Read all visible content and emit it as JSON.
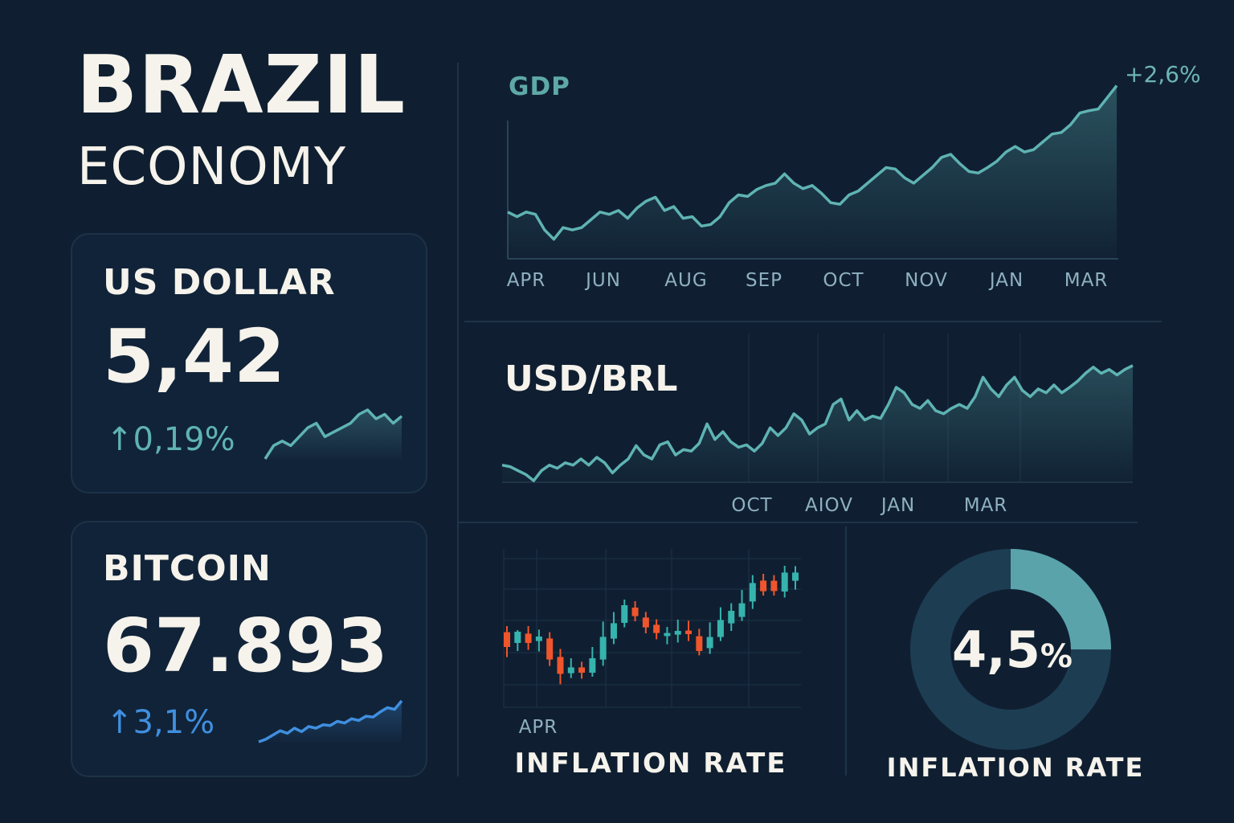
{
  "header": {
    "title": "BRAZIL",
    "subtitle": "ECONOMY"
  },
  "colors": {
    "background": "#0f1f31",
    "teal": "#5fb3b3",
    "blue": "#3f8fe0",
    "red": "#f0552b",
    "donut_track": "#1d3d52",
    "donut_fill": "#5aa3ab"
  },
  "cards": [
    {
      "label": "US DOLLAR",
      "value": "5,42",
      "change_icon": "arrow-up-icon",
      "change": "0,19%",
      "color": "#5fb3b3",
      "sparkline": [
        0,
        15,
        20,
        15,
        25,
        35,
        40,
        25,
        30,
        35,
        40,
        50,
        55,
        45,
        50,
        40,
        48
      ]
    },
    {
      "label": "BITCOIN",
      "value": "67.893",
      "change_icon": "arrow-up-icon",
      "change": "3,1%",
      "color": "#3f8fe0",
      "sparkline": [
        0,
        3,
        8,
        13,
        10,
        16,
        12,
        18,
        16,
        20,
        19,
        24,
        22,
        27,
        25,
        30,
        29,
        35,
        40,
        38,
        48
      ]
    }
  ],
  "chart_data": [
    {
      "type": "area",
      "title": "GDP",
      "annotation": "+2,6%",
      "x_ticks": [
        "APR",
        "JUN",
        "AUG",
        "SEP",
        "OCT",
        "NOV",
        "JAN",
        "MAR"
      ],
      "ylim": [
        0,
        115
      ],
      "values": [
        30,
        27,
        30,
        28.5,
        18.5,
        12.5,
        20,
        18.5,
        20,
        25,
        30,
        28.5,
        31,
        26,
        32.5,
        37,
        39.5,
        31,
        33.5,
        26,
        27,
        21,
        22,
        27,
        36,
        41,
        40,
        44.5,
        47,
        48.5,
        54.5,
        48.5,
        45,
        47,
        42,
        36,
        35,
        41,
        43.5,
        48.5,
        53.5,
        58.5,
        57.5,
        52,
        48.5,
        53.5,
        58.5,
        65,
        67,
        61,
        56,
        55,
        58.5,
        62.5,
        68.5,
        72,
        68.5,
        70,
        75,
        80,
        81,
        86,
        93.5,
        95,
        96,
        103.5,
        111
      ]
    },
    {
      "type": "area",
      "title": "USD/BRL",
      "x_ticks": [
        "OCT",
        "AIOV",
        "JAN",
        "MAR"
      ],
      "ylim": [
        0,
        155
      ],
      "values": [
        22,
        20,
        15,
        10,
        2,
        15,
        22,
        18,
        25,
        22,
        30,
        22,
        32,
        25,
        12,
        22,
        30,
        47,
        35,
        30,
        48,
        52,
        35,
        42,
        40,
        50,
        75,
        55,
        65,
        52,
        45,
        48,
        40,
        50,
        70,
        60,
        70,
        88,
        80,
        62,
        70,
        75,
        100,
        107,
        80,
        92,
        80,
        85,
        82,
        100,
        122,
        115,
        100,
        95,
        105,
        92,
        88,
        95,
        100,
        95,
        110,
        135,
        120,
        110,
        125,
        135,
        118,
        110,
        120,
        115,
        125,
        115,
        122,
        130,
        140,
        148,
        140,
        145,
        138,
        145,
        150
      ]
    },
    {
      "type": "candlestick",
      "title": "INFLATION RATE",
      "x_ticks": [
        "APR"
      ],
      "ylim": [
        0,
        92.5
      ],
      "candles": [
        {
          "o": 46.7,
          "c": 37.5,
          "h": 50.5,
          "l": 31.2
        },
        {
          "o": 40,
          "c": 47,
          "h": 48,
          "l": 35
        },
        {
          "o": 45.8,
          "c": 40,
          "h": 50.5,
          "l": 35.7
        },
        {
          "o": 41.2,
          "c": 44,
          "h": 48.3,
          "l": 34.7
        },
        {
          "o": 42.8,
          "c": 29.7,
          "h": 46.7,
          "l": 25.7
        },
        {
          "o": 31.3,
          "c": 20.8,
          "h": 36.3,
          "l": 14.3
        },
        {
          "o": 21.2,
          "c": 24.8,
          "h": 30.5,
          "l": 18.2
        },
        {
          "o": 24.8,
          "c": 21.5,
          "h": 28.3,
          "l": 17.8
        },
        {
          "o": 21.5,
          "c": 30.5,
          "h": 37.5,
          "l": 19
        },
        {
          "o": 29.7,
          "c": 43.8,
          "h": 53.3,
          "l": 25.8
        },
        {
          "o": 42.7,
          "c": 52.3,
          "h": 59.2,
          "l": 39.3
        },
        {
          "o": 52.5,
          "c": 63.5,
          "h": 67,
          "l": 49.7
        },
        {
          "o": 62,
          "c": 56.7,
          "h": 66,
          "l": 53.5
        },
        {
          "o": 55.8,
          "c": 49.7,
          "h": 59.3,
          "l": 46
        },
        {
          "o": 51.3,
          "c": 46.2,
          "h": 54.7,
          "l": 42.3
        },
        {
          "o": 44.3,
          "c": 46.2,
          "h": 50,
          "l": 39.2
        },
        {
          "o": 45.2,
          "c": 47.5,
          "h": 54.5,
          "l": 40.3
        },
        {
          "o": 47.7,
          "c": 45.5,
          "h": 53.8,
          "l": 41.2
        },
        {
          "o": 44.2,
          "c": 35,
          "h": 48.8,
          "l": 32.3
        },
        {
          "o": 36.8,
          "c": 43.7,
          "h": 52.8,
          "l": 33.2
        },
        {
          "o": 43.7,
          "c": 54.3,
          "h": 62.2,
          "l": 41.2
        },
        {
          "o": 52.2,
          "c": 60,
          "h": 64.7,
          "l": 47.5
        },
        {
          "o": 56.2,
          "c": 64.7,
          "h": 73,
          "l": 53.7
        },
        {
          "o": 65.8,
          "c": 77.3,
          "h": 82.2,
          "l": 61.2
        },
        {
          "o": 78.8,
          "c": 72.2,
          "h": 83,
          "l": 69.5
        },
        {
          "o": 78.7,
          "c": 72.3,
          "h": 82.2,
          "l": 69.5
        },
        {
          "o": 72,
          "c": 83.8,
          "h": 88,
          "l": 68.3
        },
        {
          "o": 78.7,
          "c": 83.8,
          "h": 87.8,
          "l": 73.2
        }
      ]
    },
    {
      "type": "pie",
      "title": "INFLATION RATE",
      "value_label": "4,5",
      "unit": "%",
      "fill_fraction": 0.25
    }
  ]
}
